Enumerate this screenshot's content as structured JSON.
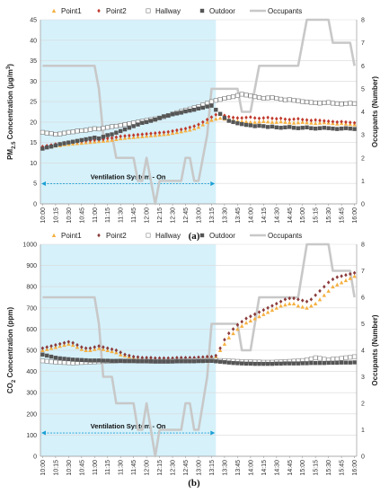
{
  "chart_data": [
    {
      "type": "scatter",
      "panel_label": "(a)",
      "x": [
        "10:00",
        "10:05",
        "10:10",
        "10:15",
        "10:20",
        "10:25",
        "10:30",
        "10:35",
        "10:40",
        "10:45",
        "10:50",
        "10:55",
        "11:00",
        "11:05",
        "11:10",
        "11:15",
        "11:20",
        "11:25",
        "11:30",
        "11:35",
        "11:40",
        "11:45",
        "11:50",
        "11:55",
        "12:00",
        "12:05",
        "12:10",
        "12:15",
        "12:20",
        "12:25",
        "12:30",
        "12:35",
        "12:40",
        "12:45",
        "12:50",
        "12:55",
        "13:00",
        "13:05",
        "13:10",
        "13:15",
        "13:20",
        "13:25",
        "13:30",
        "13:35",
        "13:40",
        "13:45",
        "13:50",
        "13:55",
        "14:00",
        "14:05",
        "14:10",
        "14:15",
        "14:20",
        "14:25",
        "14:30",
        "14:35",
        "14:40",
        "14:45",
        "14:50",
        "14:55",
        "15:00",
        "15:05",
        "15:10",
        "15:15",
        "15:20",
        "15:25",
        "15:30",
        "15:35",
        "15:40",
        "15:45",
        "15:50",
        "15:55",
        "16:00"
      ],
      "x_tick_labels": [
        "10:00",
        "10:15",
        "10:30",
        "10:45",
        "11:00",
        "11:15",
        "11:30",
        "11:45",
        "12:00",
        "12:15",
        "12:30",
        "12:45",
        "13:00",
        "13:15",
        "13:30",
        "13:45",
        "14:00",
        "14:15",
        "14:30",
        "14:45",
        "15:00",
        "15:15",
        "15:30",
        "15:45",
        "16:00"
      ],
      "ylabel": "PM2.5 Concentration (μg/m³)",
      "ylabel_main": "PM",
      "ylabel_sub": "2.5",
      "ylabel_rest": " Concentration (μg/m",
      "ylabel_sup": "3",
      "ylabel_end": ")",
      "ylim": [
        0,
        45
      ],
      "y_ticks": [
        "0",
        "5",
        "10",
        "15",
        "20",
        "25",
        "30",
        "35",
        "40",
        "45"
      ],
      "y2label": "Occupants (Number)",
      "y2lim": [
        0,
        8
      ],
      "y2_ticks": [
        "0",
        "1",
        "2",
        "3",
        "4",
        "5",
        "6",
        "7",
        "8"
      ],
      "shaded_region": {
        "from": "10:00",
        "to": "13:20",
        "label": "Ventilation System - On"
      },
      "grid": true,
      "legend_position": "top",
      "series": [
        {
          "name": "Point1",
          "marker": "triangle",
          "color": "#f5b041",
          "axis": "left",
          "values": [
            13.5,
            13.8,
            14.0,
            14.2,
            14.3,
            14.5,
            14.6,
            14.7,
            14.8,
            14.9,
            15.0,
            15.1,
            15.2,
            15.3,
            15.4,
            15.5,
            15.6,
            15.8,
            16.0,
            16.1,
            16.2,
            16.3,
            16.4,
            16.5,
            16.6,
            16.7,
            16.8,
            16.9,
            17.0,
            17.1,
            17.3,
            17.5,
            17.7,
            17.9,
            18.1,
            18.4,
            18.8,
            19.4,
            20.0,
            20.5,
            20.8,
            21.0,
            20.8,
            20.6,
            20.4,
            20.3,
            20.2,
            20.1,
            20.0,
            20.0,
            20.1,
            20.2,
            20.1,
            20.0,
            20.0,
            20.1,
            20.0,
            19.9,
            19.8,
            19.9,
            20.0,
            19.9,
            19.8,
            19.7,
            19.8,
            19.9,
            19.8,
            19.7,
            19.6,
            19.7,
            19.6,
            19.5,
            19.4
          ]
        },
        {
          "name": "Point2",
          "marker": "diamond",
          "color": "#c0392b",
          "axis": "left",
          "values": [
            14.0,
            14.2,
            14.4,
            14.6,
            14.7,
            14.9,
            15.0,
            15.1,
            15.2,
            15.3,
            15.4,
            15.5,
            15.6,
            15.7,
            15.8,
            16.0,
            16.1,
            16.3,
            16.5,
            16.6,
            16.7,
            16.8,
            16.9,
            17.0,
            17.1,
            17.2,
            17.3,
            17.4,
            17.5,
            17.6,
            17.8,
            18.0,
            18.2,
            18.4,
            18.7,
            19.0,
            19.4,
            20.0,
            20.6,
            21.2,
            21.8,
            22.0,
            21.6,
            21.3,
            21.1,
            21.0,
            21.0,
            21.1,
            21.2,
            21.0,
            20.9,
            21.0,
            21.1,
            20.9,
            20.8,
            20.9,
            20.7,
            20.6,
            20.7,
            20.8,
            20.6,
            20.5,
            20.4,
            20.5,
            20.4,
            20.3,
            20.2,
            20.1,
            20.0,
            20.1,
            20.0,
            19.9,
            19.8
          ]
        },
        {
          "name": "Hallway",
          "marker": "square-open",
          "color": "#777777",
          "axis": "left",
          "values": [
            17.5,
            17.3,
            17.2,
            17.0,
            17.1,
            17.3,
            17.5,
            17.6,
            17.8,
            17.9,
            18.0,
            18.2,
            18.4,
            18.3,
            18.5,
            18.7,
            18.9,
            19.0,
            19.2,
            19.4,
            19.6,
            19.8,
            20.0,
            20.2,
            20.4,
            20.6,
            20.8,
            21.0,
            21.3,
            21.6,
            22.0,
            22.3,
            22.6,
            22.9,
            23.2,
            23.5,
            23.8,
            24.2,
            24.6,
            25.0,
            25.3,
            25.5,
            25.8,
            26.0,
            26.2,
            26.5,
            26.8,
            26.6,
            26.4,
            26.2,
            26.0,
            25.8,
            25.9,
            26.0,
            25.8,
            25.6,
            25.4,
            25.5,
            25.3,
            25.2,
            25.0,
            24.9,
            24.8,
            24.7,
            24.6,
            24.7,
            24.8,
            24.6,
            24.5,
            24.4,
            24.5,
            24.6,
            24.5
          ]
        },
        {
          "name": "Outdoor",
          "marker": "square",
          "color": "#555555",
          "axis": "left",
          "values": [
            13.5,
            13.8,
            14.0,
            14.3,
            14.6,
            14.8,
            15.0,
            15.2,
            15.4,
            15.6,
            15.8,
            16.0,
            16.2,
            16.0,
            16.4,
            16.8,
            17.0,
            17.4,
            17.8,
            18.2,
            18.6,
            19.0,
            19.4,
            19.8,
            20.0,
            20.3,
            20.6,
            21.0,
            21.4,
            21.6,
            21.9,
            22.1,
            22.3,
            22.6,
            22.8,
            23.0,
            23.3,
            23.5,
            23.8,
            24.0,
            23.0,
            22.0,
            21.0,
            20.3,
            20.0,
            19.7,
            19.5,
            19.3,
            19.2,
            19.0,
            19.1,
            19.0,
            18.8,
            18.9,
            18.7,
            18.6,
            18.7,
            18.8,
            18.6,
            18.5,
            18.6,
            18.7,
            18.5,
            18.4,
            18.5,
            18.6,
            18.5,
            18.4,
            18.3,
            18.4,
            18.5,
            18.4,
            18.3
          ]
        },
        {
          "name": "Occupants",
          "line": true,
          "color": "#c8c8c8",
          "axis": "right",
          "values": [
            6,
            6,
            6,
            6,
            6,
            6,
            6,
            6,
            6,
            6,
            6,
            6,
            6,
            5,
            3,
            3,
            3,
            2,
            2,
            2,
            2,
            2,
            1,
            1,
            2,
            1,
            0,
            1,
            1,
            1,
            1,
            1,
            1,
            2,
            2,
            1,
            1,
            2,
            3,
            5,
            5,
            5,
            5,
            5,
            5,
            5,
            4,
            4,
            4,
            5,
            6,
            6,
            6,
            6,
            6,
            6,
            6,
            6,
            6,
            6,
            7,
            8,
            8,
            8,
            8,
            8,
            8,
            7,
            7,
            7,
            7,
            7,
            6
          ]
        }
      ]
    },
    {
      "type": "scatter",
      "panel_label": "(b)",
      "x": [
        "10:00",
        "10:05",
        "10:10",
        "10:15",
        "10:20",
        "10:25",
        "10:30",
        "10:35",
        "10:40",
        "10:45",
        "10:50",
        "10:55",
        "11:00",
        "11:05",
        "11:10",
        "11:15",
        "11:20",
        "11:25",
        "11:30",
        "11:35",
        "11:40",
        "11:45",
        "11:50",
        "11:55",
        "12:00",
        "12:05",
        "12:10",
        "12:15",
        "12:20",
        "12:25",
        "12:30",
        "12:35",
        "12:40",
        "12:45",
        "12:50",
        "12:55",
        "13:00",
        "13:05",
        "13:10",
        "13:15",
        "13:20",
        "13:25",
        "13:30",
        "13:35",
        "13:40",
        "13:45",
        "13:50",
        "13:55",
        "14:00",
        "14:05",
        "14:10",
        "14:15",
        "14:20",
        "14:25",
        "14:30",
        "14:35",
        "14:40",
        "14:45",
        "14:50",
        "14:55",
        "15:00",
        "15:05",
        "15:10",
        "15:15",
        "15:20",
        "15:25",
        "15:30",
        "15:35",
        "15:40",
        "15:45",
        "15:50",
        "15:55",
        "16:00"
      ],
      "x_tick_labels": [
        "10:00",
        "10:15",
        "10:30",
        "10:45",
        "11:00",
        "11:15",
        "11:30",
        "11:45",
        "12:00",
        "12:15",
        "12:30",
        "12:45",
        "13:00",
        "13:15",
        "13:30",
        "13:45",
        "14:00",
        "14:15",
        "14:30",
        "14:45",
        "15:00",
        "15:15",
        "15:30",
        "15:45",
        "16:00"
      ],
      "ylabel": "CO2 Concentration (ppm)",
      "ylabel_main": "CO",
      "ylabel_sub": "2",
      "ylabel_rest": " Concentration (ppm)",
      "ylim": [
        0,
        1000
      ],
      "y_ticks": [
        "0",
        "100",
        "200",
        "300",
        "400",
        "500",
        "600",
        "700",
        "800",
        "900",
        "1000"
      ],
      "y2label": "Occupants (Number)",
      "y2lim": [
        0,
        8
      ],
      "y2_ticks": [
        "0",
        "1",
        "2",
        "3",
        "4",
        "5",
        "6",
        "7",
        "8"
      ],
      "shaded_region": {
        "from": "10:00",
        "to": "13:20",
        "label": "Ventilation System - On"
      },
      "grid": true,
      "legend_position": "top",
      "series": [
        {
          "name": "Point1",
          "marker": "triangle",
          "color": "#f5b041",
          "axis": "left",
          "values": [
            500,
            505,
            510,
            515,
            520,
            525,
            530,
            525,
            515,
            505,
            500,
            500,
            505,
            510,
            505,
            500,
            495,
            490,
            480,
            475,
            470,
            465,
            462,
            460,
            460,
            460,
            458,
            458,
            458,
            458,
            458,
            460,
            460,
            460,
            460,
            460,
            462,
            462,
            465,
            465,
            470,
            500,
            530,
            560,
            580,
            600,
            615,
            630,
            640,
            650,
            660,
            670,
            680,
            690,
            700,
            710,
            715,
            720,
            720,
            710,
            705,
            700,
            710,
            720,
            740,
            760,
            780,
            800,
            810,
            820,
            830,
            840,
            850
          ]
        },
        {
          "name": "Point2",
          "marker": "diamond",
          "color": "#8b3a3a",
          "axis": "left",
          "values": [
            510,
            515,
            520,
            525,
            530,
            535,
            540,
            535,
            525,
            515,
            510,
            510,
            515,
            520,
            515,
            510,
            505,
            500,
            490,
            480,
            475,
            470,
            468,
            465,
            465,
            465,
            463,
            463,
            463,
            463,
            463,
            465,
            465,
            465,
            465,
            465,
            467,
            468,
            470,
            470,
            475,
            510,
            550,
            580,
            600,
            620,
            635,
            650,
            660,
            670,
            680,
            690,
            700,
            710,
            720,
            730,
            740,
            745,
            745,
            740,
            735,
            730,
            740,
            760,
            780,
            800,
            820,
            835,
            845,
            850,
            855,
            860,
            865
          ]
        },
        {
          "name": "Hallway",
          "marker": "square-open",
          "color": "#888888",
          "axis": "left",
          "values": [
            450,
            448,
            446,
            444,
            443,
            442,
            441,
            440,
            441,
            442,
            443,
            444,
            445,
            446,
            447,
            448,
            448,
            449,
            450,
            450,
            450,
            450,
            449,
            449,
            449,
            448,
            448,
            448,
            448,
            448,
            449,
            449,
            450,
            450,
            451,
            451,
            452,
            452,
            453,
            453,
            453,
            452,
            451,
            450,
            449,
            448,
            447,
            446,
            446,
            445,
            445,
            444,
            444,
            444,
            445,
            446,
            447,
            448,
            449,
            450,
            452,
            455,
            460,
            465,
            462,
            458,
            455,
            458,
            460,
            462,
            465,
            467,
            470
          ]
        },
        {
          "name": "Outdoor",
          "marker": "square",
          "color": "#555555",
          "axis": "left",
          "values": [
            480,
            475,
            470,
            465,
            462,
            460,
            458,
            456,
            455,
            454,
            453,
            452,
            452,
            452,
            451,
            451,
            450,
            450,
            450,
            449,
            449,
            449,
            448,
            448,
            448,
            448,
            447,
            447,
            447,
            447,
            447,
            448,
            448,
            448,
            448,
            448,
            449,
            449,
            450,
            450,
            448,
            446,
            444,
            442,
            440,
            439,
            438,
            437,
            437,
            436,
            436,
            436,
            436,
            436,
            437,
            437,
            438,
            438,
            438,
            438,
            439,
            439,
            440,
            440,
            440,
            440,
            441,
            441,
            441,
            442,
            442,
            442,
            443
          ]
        },
        {
          "name": "Occupants",
          "line": true,
          "color": "#c8c8c8",
          "axis": "right",
          "values": [
            6,
            6,
            6,
            6,
            6,
            6,
            6,
            6,
            6,
            6,
            6,
            6,
            6,
            5,
            3,
            3,
            3,
            2,
            2,
            2,
            2,
            2,
            1,
            1,
            2,
            1,
            0,
            1,
            1,
            1,
            1,
            1,
            1,
            2,
            2,
            1,
            1,
            2,
            3,
            5,
            5,
            5,
            5,
            5,
            5,
            5,
            4,
            4,
            4,
            5,
            6,
            6,
            6,
            6,
            6,
            6,
            6,
            6,
            6,
            6,
            7,
            8,
            8,
            8,
            8,
            8,
            8,
            7,
            7,
            7,
            7,
            7,
            6
          ]
        }
      ]
    }
  ]
}
